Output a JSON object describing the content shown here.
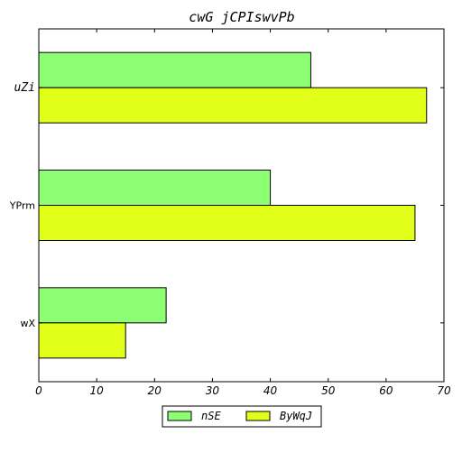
{
  "chart_data": {
    "type": "bar",
    "orientation": "horizontal",
    "title": "cwG jCPIswvPb",
    "xlabel": "",
    "ylabel": "",
    "categories": [
      "uZi",
      "YPrm",
      "wX"
    ],
    "series": [
      {
        "name": "nSE",
        "values": [
          47,
          40,
          22
        ],
        "color": "#8cff72"
      },
      {
        "name": "ByWqJ",
        "values": [
          67,
          65,
          15
        ],
        "color": "#e2ff1a"
      }
    ],
    "xlim": [
      0,
      70
    ],
    "xticks": [
      0,
      10,
      20,
      30,
      40,
      50,
      60,
      70
    ],
    "grid": false,
    "legend_position": "bottom-center"
  }
}
